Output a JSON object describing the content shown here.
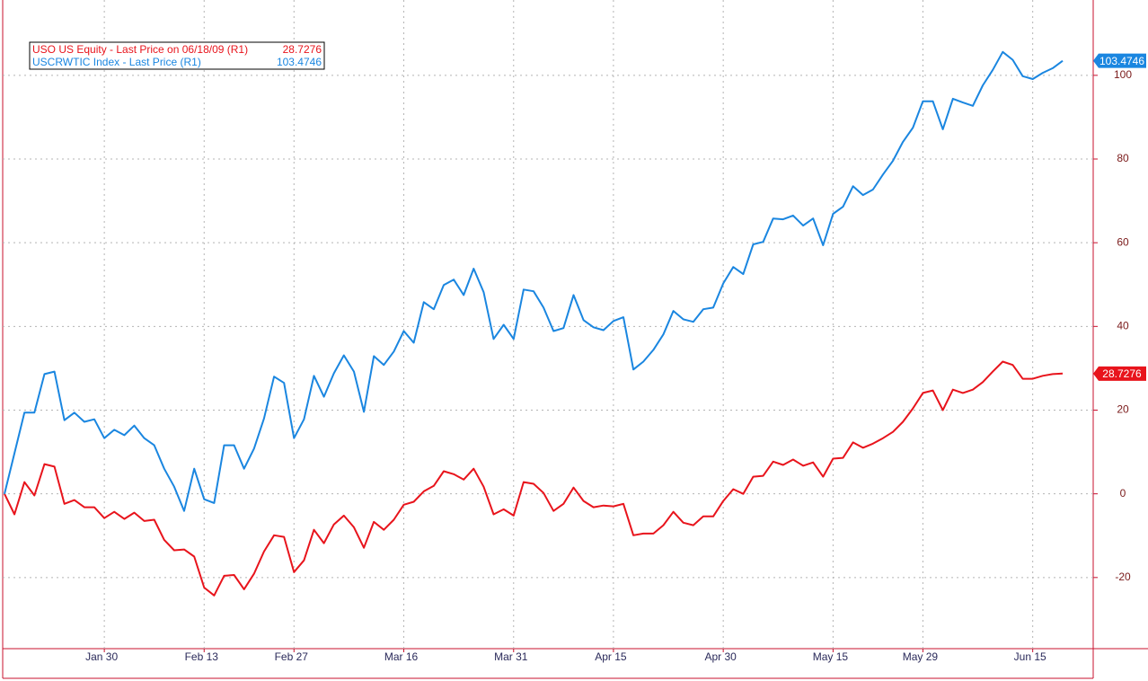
{
  "chart_data": {
    "type": "line",
    "categories": [
      null,
      null,
      null,
      null,
      null,
      null,
      null,
      null,
      null,
      null,
      "Jan 30",
      null,
      null,
      null,
      null,
      null,
      null,
      null,
      null,
      null,
      "Feb 13",
      null,
      null,
      null,
      null,
      null,
      null,
      null,
      null,
      "Feb 27",
      null,
      null,
      null,
      null,
      null,
      null,
      null,
      null,
      null,
      null,
      "Mar 16",
      null,
      null,
      null,
      null,
      null,
      null,
      null,
      null,
      null,
      null,
      "Mar 31",
      null,
      null,
      null,
      null,
      null,
      null,
      null,
      null,
      null,
      "Apr 15",
      null,
      null,
      null,
      null,
      null,
      null,
      null,
      null,
      null,
      null,
      "Apr 30",
      null,
      null,
      null,
      null,
      null,
      null,
      null,
      null,
      null,
      null,
      "May 15",
      null,
      null,
      null,
      null,
      null,
      null,
      null,
      null,
      "May 29",
      null,
      null,
      null,
      null,
      null,
      null,
      null,
      null,
      null,
      null,
      "Jun 15",
      null,
      null,
      null
    ],
    "series": [
      {
        "name": "USO US Equity - Last Price on 06/18/09 (R1)",
        "color": "#e8141c",
        "values": [
          0,
          -4.9,
          2.8,
          -0.4,
          7.1,
          6.5,
          -2.4,
          -1.5,
          -3.2,
          -3.2,
          -5.8,
          -4.3,
          -6,
          -4.5,
          -6.5,
          -6.2,
          -11,
          -13.5,
          -13.3,
          -15,
          -22.4,
          -24.3,
          -19.6,
          -19.4,
          -22.8,
          -19.1,
          -13.8,
          -9.9,
          -10.3,
          -18.7,
          -15.9,
          -8.6,
          -11.8,
          -7.3,
          -5.2,
          -8,
          -12.9,
          -6.7,
          -8.6,
          -6.2,
          -2.6,
          -1.9,
          0.6,
          1.9,
          5.4,
          4.7,
          3.4,
          6,
          1.7,
          -4.9,
          -3.7,
          -5.2,
          2.8,
          2.4,
          0.2,
          -4.1,
          -2.4,
          1.5,
          -1.7,
          -3.2,
          -2.8,
          -3,
          -2.4,
          -9.9,
          -9.5,
          -9.5,
          -7.5,
          -4.3,
          -6.9,
          -7.5,
          -5.4,
          -5.4,
          -1.7,
          1.1,
          0,
          4.1,
          4.3,
          7.7,
          6.9,
          8.2,
          6.7,
          7.5,
          4.1,
          8.4,
          8.6,
          12.3,
          11,
          12,
          13.3,
          14.8,
          17.2,
          20.4,
          24.1,
          24.7,
          20,
          24.9,
          24.1,
          24.9,
          26.7,
          29.2,
          31.6,
          30.8,
          27.5,
          27.5,
          28.2,
          28.6,
          28.7276
        ]
      },
      {
        "name": "USCRWTIC Index - Last Price (R1)",
        "color": "#1a86e0",
        "values": [
          0,
          9.7,
          19.4,
          19.4,
          28.6,
          29.2,
          17.6,
          19.4,
          17.2,
          17.8,
          13.3,
          15.3,
          14,
          16.3,
          13.3,
          11.6,
          6,
          1.7,
          -4.1,
          6,
          -1.3,
          -2.2,
          11.6,
          11.6,
          6,
          10.8,
          18,
          28,
          26.5,
          13.3,
          17.8,
          28.2,
          23.2,
          28.8,
          33.1,
          29.2,
          19.6,
          32.9,
          30.8,
          34,
          38.9,
          36.1,
          45.8,
          44.1,
          49.9,
          51.2,
          47.5,
          53.8,
          48.2,
          37,
          40.4,
          37,
          48.8,
          48.4,
          44.5,
          38.9,
          39.6,
          47.5,
          41.5,
          39.8,
          39.1,
          41.3,
          42.2,
          29.7,
          31.6,
          34.4,
          38.1,
          43.7,
          41.7,
          41.1,
          44.1,
          44.5,
          50.3,
          54.2,
          52.5,
          59.6,
          60.2,
          65.8,
          65.6,
          66.5,
          64.1,
          65.8,
          59.4,
          66.9,
          68.6,
          73.5,
          71.4,
          72.7,
          76.3,
          79.6,
          84.1,
          87.5,
          93.8,
          93.8,
          87.1,
          94.4,
          93.5,
          92.7,
          97.6,
          101.3,
          105.6,
          103.7,
          99.8,
          99.1,
          100.6,
          101.7,
          103.4746
        ]
      }
    ],
    "ylim": [
      -37,
      118
    ],
    "yticks": [
      -20,
      0,
      20,
      40,
      60,
      80,
      100
    ],
    "grid": true
  }
}
